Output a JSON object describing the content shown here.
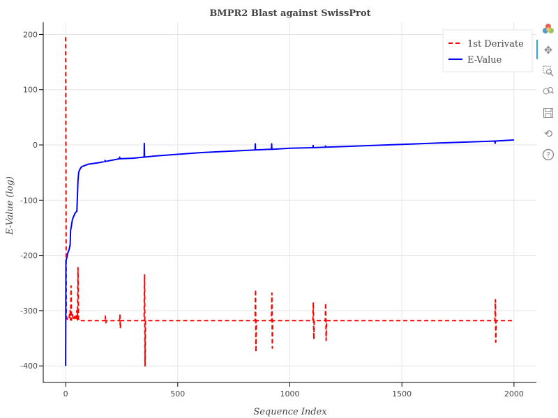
{
  "chart_data": {
    "type": "line",
    "title": "BMPR2 Blast against SwissProt",
    "xlabel": "Sequence Index",
    "ylabel": "E-Value (log)",
    "xlim": [
      -100,
      2100
    ],
    "ylim": [
      -430,
      222
    ],
    "x_ticks": [
      0,
      500,
      1000,
      1500,
      2000
    ],
    "x_tick_labels": [
      "0",
      "500",
      "1000",
      "1500",
      "2000"
    ],
    "y_ticks": [
      -400,
      -300,
      -200,
      -100,
      0,
      100,
      200
    ],
    "y_tick_labels": [
      "-400",
      "-300",
      "-200",
      "-100",
      "0",
      "100",
      "200"
    ],
    "grid": true,
    "legend_position": "top-right",
    "series": [
      {
        "name": "1st Derivate",
        "color": "#ff0000",
        "style": "dashed",
        "points": [
          [
            0,
            195
          ],
          [
            3,
            -310
          ],
          [
            8,
            -317
          ],
          [
            15,
            -313
          ],
          [
            20,
            -300
          ],
          [
            22,
            -317
          ],
          [
            24,
            -255
          ],
          [
            26,
            -317
          ],
          [
            30,
            -307
          ],
          [
            35,
            -317
          ],
          [
            40,
            -311
          ],
          [
            45,
            -317
          ],
          [
            50,
            -300
          ],
          [
            53,
            -317
          ],
          [
            55,
            -222
          ],
          [
            57,
            -317
          ],
          [
            60,
            -318
          ],
          [
            100,
            -318
          ],
          [
            175,
            -318
          ],
          [
            177,
            -310
          ],
          [
            179,
            -322
          ],
          [
            181,
            -318
          ],
          [
            240,
            -318
          ],
          [
            242,
            -308
          ],
          [
            244,
            -332
          ],
          [
            246,
            -318
          ],
          [
            350,
            -318
          ],
          [
            352,
            -235
          ],
          [
            354,
            -400
          ],
          [
            356,
            -318
          ],
          [
            845,
            -318
          ],
          [
            847,
            -262
          ],
          [
            849,
            -375
          ],
          [
            851,
            -318
          ],
          [
            918,
            -318
          ],
          [
            920,
            -268
          ],
          [
            922,
            -368
          ],
          [
            924,
            -318
          ],
          [
            1103,
            -318
          ],
          [
            1105,
            -285
          ],
          [
            1107,
            -352
          ],
          [
            1109,
            -318
          ],
          [
            1158,
            -318
          ],
          [
            1160,
            -286
          ],
          [
            1162,
            -354
          ],
          [
            1164,
            -318
          ],
          [
            1915,
            -318
          ],
          [
            1917,
            -280
          ],
          [
            1919,
            -357
          ],
          [
            1921,
            -318
          ],
          [
            2000,
            -318
          ]
        ]
      },
      {
        "name": "E-Value",
        "color": "#0000ff",
        "style": "solid",
        "points": [
          [
            0,
            -400
          ],
          [
            1,
            -210
          ],
          [
            5,
            -205
          ],
          [
            10,
            -195
          ],
          [
            15,
            -190
          ],
          [
            20,
            -180
          ],
          [
            22,
            -155
          ],
          [
            25,
            -148
          ],
          [
            30,
            -135
          ],
          [
            35,
            -130
          ],
          [
            40,
            -125
          ],
          [
            45,
            -122
          ],
          [
            50,
            -120
          ],
          [
            52,
            -100
          ],
          [
            55,
            -65
          ],
          [
            58,
            -50
          ],
          [
            62,
            -45
          ],
          [
            70,
            -40
          ],
          [
            80,
            -38
          ],
          [
            100,
            -35
          ],
          [
            150,
            -32
          ],
          [
            175,
            -30
          ],
          [
            176,
            -28
          ],
          [
            177,
            -30
          ],
          [
            240,
            -25
          ],
          [
            241,
            -22
          ],
          [
            242,
            -25
          ],
          [
            300,
            -24
          ],
          [
            350,
            -22
          ],
          [
            351,
            3
          ],
          [
            352,
            -22
          ],
          [
            400,
            -20
          ],
          [
            500,
            -17
          ],
          [
            600,
            -14
          ],
          [
            700,
            -12
          ],
          [
            800,
            -10
          ],
          [
            845,
            -9
          ],
          [
            846,
            2
          ],
          [
            847,
            -9
          ],
          [
            900,
            -8
          ],
          [
            918,
            -8
          ],
          [
            919,
            2
          ],
          [
            920,
            -8
          ],
          [
            1000,
            -6
          ],
          [
            1103,
            -5
          ],
          [
            1104,
            -1
          ],
          [
            1105,
            -5
          ],
          [
            1158,
            -4
          ],
          [
            1159,
            -2
          ],
          [
            1160,
            -4
          ],
          [
            1300,
            -2
          ],
          [
            1500,
            1
          ],
          [
            1700,
            4
          ],
          [
            1915,
            7
          ],
          [
            1916,
            3
          ],
          [
            1917,
            7
          ],
          [
            2000,
            9
          ]
        ]
      }
    ]
  },
  "toolbar": {
    "tools": [
      "bokeh-logo-icon",
      "pan-icon",
      "box-zoom-icon",
      "wheel-zoom-icon",
      "save-icon",
      "reset-icon",
      "help-icon"
    ]
  }
}
